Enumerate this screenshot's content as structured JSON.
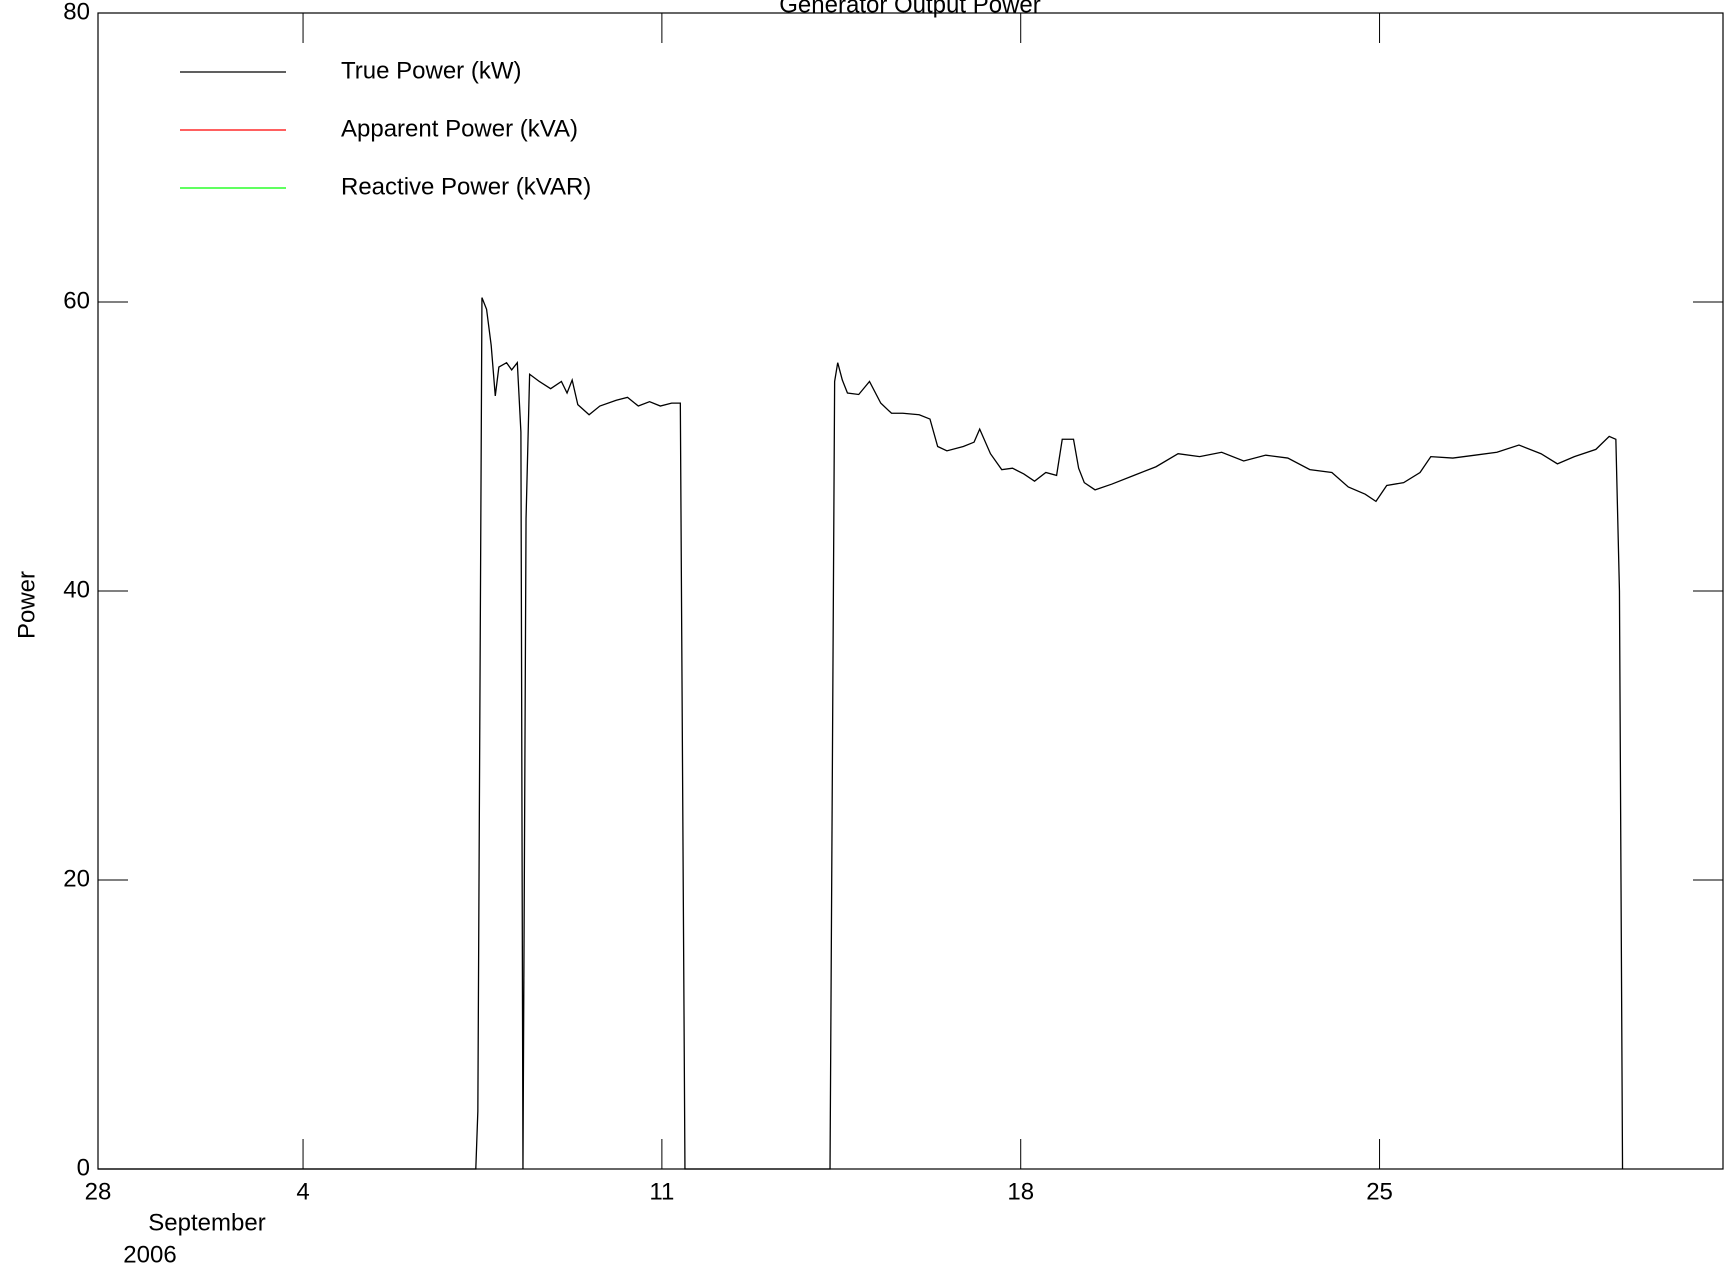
{
  "chart_data": {
    "type": "line",
    "title": "Generator Output Power",
    "ylabel": "Power",
    "xlabel_month": "September",
    "xlabel_year": "2006",
    "xlim": [
      0,
      31.7
    ],
    "ylim": [
      0,
      80
    ],
    "xticks": [
      {
        "value": 0,
        "label": "28"
      },
      4,
      11,
      18,
      25
    ],
    "yticks": [
      0,
      20,
      40,
      60,
      80
    ],
    "series": [
      {
        "name": "True Power (kW)",
        "color": "#000000",
        "x": [
          0,
          7.37,
          7.41,
          7.49,
          7.58,
          7.67,
          7.75,
          7.82,
          7.97,
          8.07,
          8.18,
          8.25,
          8.29,
          8.35,
          8.42,
          8.61,
          8.83,
          9.04,
          9.15,
          9.25,
          9.36,
          9.58,
          9.79,
          10.11,
          10.33,
          10.54,
          10.76,
          10.97,
          11.19,
          11.36,
          11.45,
          14.28,
          14.37,
          14.43,
          14.52,
          14.62,
          14.84,
          15.05,
          15.27,
          15.48,
          15.7,
          16.02,
          16.23,
          16.38,
          16.56,
          16.88,
          17.09,
          17.2,
          17.41,
          17.63,
          17.84,
          18.06,
          18.27,
          18.49,
          18.7,
          18.81,
          19.03,
          19.13,
          19.24,
          19.45,
          19.78,
          20.21,
          20.64,
          21.07,
          21.49,
          21.92,
          22.35,
          22.78,
          23.21,
          23.64,
          24.07,
          24.39,
          24.72,
          24.93,
          25.14,
          25.47,
          25.79,
          26.0,
          26.43,
          26.86,
          27.29,
          27.72,
          28.15,
          28.47,
          28.8,
          29.22,
          29.48,
          29.61,
          29.68,
          29.74
        ],
        "values": [
          0,
          0,
          4,
          60.3,
          59.5,
          57,
          53.5,
          55.5,
          55.8,
          55.3,
          55.8,
          51,
          0,
          45,
          55,
          54.5,
          54,
          54.5,
          53.7,
          54.6,
          52.9,
          52.2,
          52.8,
          53.2,
          53.4,
          52.8,
          53.1,
          52.8,
          53,
          53,
          0,
          0,
          54.5,
          55.8,
          54.6,
          53.7,
          53.6,
          54.5,
          53,
          52.3,
          52.3,
          52.2,
          51.9,
          50,
          49.7,
          50,
          50.3,
          51.2,
          49.5,
          48.4,
          48.5,
          48.1,
          47.6,
          48.2,
          48,
          50.5,
          50.5,
          48.5,
          47.5,
          47,
          47.4,
          48,
          48.6,
          49.5,
          49.3,
          49.6,
          49,
          49.4,
          49.2,
          48.4,
          48.2,
          47.2,
          46.7,
          46.2,
          47.3,
          47.5,
          48.2,
          49.3,
          49.2,
          49.4,
          49.6,
          50.1,
          49.5,
          48.8,
          49.3,
          49.8,
          50.7,
          50.5,
          40,
          0
        ]
      },
      {
        "name": "Apparent Power (kVA)",
        "color": "#ff0000",
        "x": [],
        "values": []
      },
      {
        "name": "Reactive Power (kVAR)",
        "color": "#00ff00",
        "x": [],
        "values": []
      }
    ]
  }
}
